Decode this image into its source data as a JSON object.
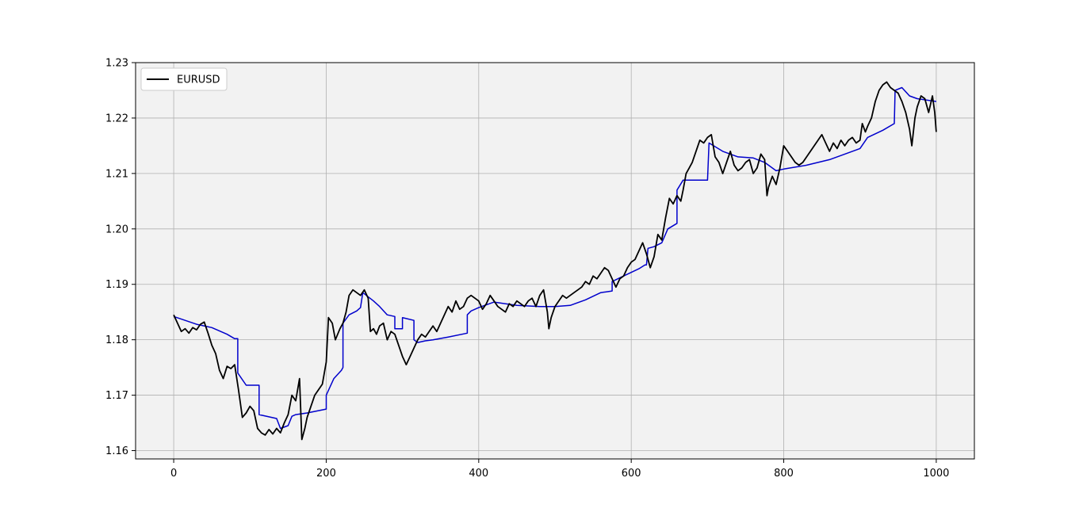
{
  "chart_data": {
    "type": "line",
    "title": "",
    "xlabel": "",
    "ylabel": "",
    "xlim": [
      -50,
      1050
    ],
    "ylim": [
      1.1585,
      1.23
    ],
    "x_ticks": [
      0,
      200,
      400,
      600,
      800,
      1000
    ],
    "x_tick_labels": [
      "0",
      "200",
      "400",
      "600",
      "800",
      "1000"
    ],
    "y_ticks": [
      1.16,
      1.17,
      1.18,
      1.19,
      1.2,
      1.21,
      1.22,
      1.23
    ],
    "y_tick_labels": [
      "1.16",
      "1.17",
      "1.18",
      "1.19",
      "1.20",
      "1.21",
      "1.22",
      "1.23"
    ],
    "grid": true,
    "background_color": "#f2f2f2",
    "legend": {
      "position": "top-left",
      "entries": [
        {
          "label": "EURUSD",
          "color": "#000000"
        }
      ]
    },
    "series": [
      {
        "name": "EURUSD",
        "color": "#000000",
        "points": [
          [
            0,
            1.1845
          ],
          [
            5,
            1.183
          ],
          [
            10,
            1.1815
          ],
          [
            15,
            1.182
          ],
          [
            20,
            1.1812
          ],
          [
            25,
            1.1822
          ],
          [
            30,
            1.1818
          ],
          [
            35,
            1.1828
          ],
          [
            40,
            1.1832
          ],
          [
            45,
            1.1812
          ],
          [
            50,
            1.179
          ],
          [
            55,
            1.1775
          ],
          [
            60,
            1.1745
          ],
          [
            65,
            1.173
          ],
          [
            70,
            1.1752
          ],
          [
            75,
            1.1748
          ],
          [
            80,
            1.1755
          ],
          [
            85,
            1.171
          ],
          [
            90,
            1.166
          ],
          [
            95,
            1.1668
          ],
          [
            100,
            1.168
          ],
          [
            105,
            1.1672
          ],
          [
            110,
            1.164
          ],
          [
            115,
            1.1632
          ],
          [
            120,
            1.1628
          ],
          [
            125,
            1.1638
          ],
          [
            130,
            1.163
          ],
          [
            135,
            1.164
          ],
          [
            140,
            1.1632
          ],
          [
            145,
            1.165
          ],
          [
            150,
            1.1665
          ],
          [
            155,
            1.17
          ],
          [
            160,
            1.169
          ],
          [
            165,
            1.173
          ],
          [
            168,
            1.162
          ],
          [
            172,
            1.164
          ],
          [
            175,
            1.166
          ],
          [
            180,
            1.168
          ],
          [
            185,
            1.17
          ],
          [
            190,
            1.171
          ],
          [
            195,
            1.172
          ],
          [
            200,
            1.176
          ],
          [
            203,
            1.184
          ],
          [
            208,
            1.183
          ],
          [
            212,
            1.18
          ],
          [
            218,
            1.182
          ],
          [
            222,
            1.183
          ],
          [
            226,
            1.185
          ],
          [
            230,
            1.188
          ],
          [
            235,
            1.189
          ],
          [
            240,
            1.1885
          ],
          [
            245,
            1.188
          ],
          [
            250,
            1.189
          ],
          [
            255,
            1.1875
          ],
          [
            258,
            1.1815
          ],
          [
            262,
            1.182
          ],
          [
            266,
            1.181
          ],
          [
            270,
            1.1825
          ],
          [
            275,
            1.183
          ],
          [
            280,
            1.18
          ],
          [
            285,
            1.1815
          ],
          [
            290,
            1.181
          ],
          [
            295,
            1.179
          ],
          [
            300,
            1.177
          ],
          [
            305,
            1.1755
          ],
          [
            310,
            1.177
          ],
          [
            315,
            1.1785
          ],
          [
            320,
            1.18
          ],
          [
            325,
            1.181
          ],
          [
            330,
            1.1805
          ],
          [
            335,
            1.1815
          ],
          [
            340,
            1.1825
          ],
          [
            345,
            1.1815
          ],
          [
            350,
            1.183
          ],
          [
            355,
            1.1845
          ],
          [
            360,
            1.186
          ],
          [
            365,
            1.185
          ],
          [
            370,
            1.187
          ],
          [
            375,
            1.1855
          ],
          [
            380,
            1.186
          ],
          [
            385,
            1.1875
          ],
          [
            390,
            1.188
          ],
          [
            395,
            1.1875
          ],
          [
            400,
            1.187
          ],
          [
            405,
            1.1855
          ],
          [
            410,
            1.1865
          ],
          [
            415,
            1.188
          ],
          [
            420,
            1.187
          ],
          [
            425,
            1.186
          ],
          [
            430,
            1.1855
          ],
          [
            435,
            1.185
          ],
          [
            440,
            1.1865
          ],
          [
            445,
            1.186
          ],
          [
            450,
            1.187
          ],
          [
            455,
            1.1865
          ],
          [
            460,
            1.186
          ],
          [
            465,
            1.187
          ],
          [
            470,
            1.1875
          ],
          [
            475,
            1.186
          ],
          [
            480,
            1.188
          ],
          [
            485,
            1.189
          ],
          [
            490,
            1.185
          ],
          [
            492,
            1.182
          ],
          [
            495,
            1.184
          ],
          [
            500,
            1.186
          ],
          [
            505,
            1.187
          ],
          [
            510,
            1.188
          ],
          [
            515,
            1.1875
          ],
          [
            520,
            1.188
          ],
          [
            525,
            1.1885
          ],
          [
            530,
            1.189
          ],
          [
            535,
            1.1895
          ],
          [
            540,
            1.1905
          ],
          [
            545,
            1.19
          ],
          [
            550,
            1.1915
          ],
          [
            555,
            1.191
          ],
          [
            560,
            1.192
          ],
          [
            565,
            1.193
          ],
          [
            570,
            1.1925
          ],
          [
            575,
            1.191
          ],
          [
            580,
            1.1895
          ],
          [
            585,
            1.191
          ],
          [
            590,
            1.1915
          ],
          [
            595,
            1.193
          ],
          [
            600,
            1.194
          ],
          [
            605,
            1.1945
          ],
          [
            610,
            1.196
          ],
          [
            615,
            1.1975
          ],
          [
            620,
            1.1955
          ],
          [
            625,
            1.193
          ],
          [
            630,
            1.195
          ],
          [
            635,
            1.199
          ],
          [
            640,
            1.198
          ],
          [
            645,
            1.202
          ],
          [
            650,
            1.2055
          ],
          [
            655,
            1.2045
          ],
          [
            660,
            1.206
          ],
          [
            665,
            1.205
          ],
          [
            668,
            1.207
          ],
          [
            672,
            1.21
          ],
          [
            676,
            1.211
          ],
          [
            680,
            1.212
          ],
          [
            685,
            1.214
          ],
          [
            690,
            1.216
          ],
          [
            695,
            1.2155
          ],
          [
            700,
            1.2165
          ],
          [
            705,
            1.217
          ],
          [
            710,
            1.213
          ],
          [
            715,
            1.212
          ],
          [
            720,
            1.21
          ],
          [
            725,
            1.212
          ],
          [
            730,
            1.214
          ],
          [
            735,
            1.2115
          ],
          [
            740,
            1.2105
          ],
          [
            745,
            1.211
          ],
          [
            750,
            1.212
          ],
          [
            755,
            1.2125
          ],
          [
            760,
            1.21
          ],
          [
            765,
            1.211
          ],
          [
            770,
            1.2135
          ],
          [
            775,
            1.2125
          ],
          [
            778,
            1.206
          ],
          [
            780,
            1.2075
          ],
          [
            785,
            1.2095
          ],
          [
            790,
            1.208
          ],
          [
            795,
            1.211
          ],
          [
            800,
            1.215
          ],
          [
            805,
            1.214
          ],
          [
            810,
            1.213
          ],
          [
            815,
            1.212
          ],
          [
            820,
            1.2115
          ],
          [
            825,
            1.212
          ],
          [
            830,
            1.213
          ],
          [
            835,
            1.214
          ],
          [
            840,
            1.215
          ],
          [
            845,
            1.216
          ],
          [
            850,
            1.217
          ],
          [
            855,
            1.2155
          ],
          [
            860,
            1.214
          ],
          [
            865,
            1.2155
          ],
          [
            870,
            1.2145
          ],
          [
            875,
            1.216
          ],
          [
            880,
            1.215
          ],
          [
            885,
            1.216
          ],
          [
            890,
            1.2165
          ],
          [
            895,
            1.2155
          ],
          [
            900,
            1.216
          ],
          [
            903,
            1.219
          ],
          [
            907,
            1.2175
          ],
          [
            910,
            1.2185
          ],
          [
            915,
            1.22
          ],
          [
            920,
            1.223
          ],
          [
            925,
            1.225
          ],
          [
            930,
            1.226
          ],
          [
            935,
            1.2265
          ],
          [
            940,
            1.2255
          ],
          [
            945,
            1.225
          ],
          [
            950,
            1.2245
          ],
          [
            955,
            1.223
          ],
          [
            960,
            1.221
          ],
          [
            965,
            1.218
          ],
          [
            968,
            1.215
          ],
          [
            972,
            1.22
          ],
          [
            975,
            1.222
          ],
          [
            980,
            1.224
          ],
          [
            985,
            1.2235
          ],
          [
            990,
            1.221
          ],
          [
            995,
            1.224
          ],
          [
            998,
            1.221
          ],
          [
            1000,
            1.2175
          ]
        ]
      },
      {
        "name": "",
        "color": "#0000cc",
        "points": [
          [
            0,
            1.1842
          ],
          [
            30,
            1.1828
          ],
          [
            50,
            1.1822
          ],
          [
            70,
            1.181
          ],
          [
            80,
            1.1802
          ],
          [
            84,
            1.1802
          ],
          [
            84,
            1.174
          ],
          [
            95,
            1.1718
          ],
          [
            112,
            1.1718
          ],
          [
            112,
            1.1665
          ],
          [
            135,
            1.1658
          ],
          [
            140,
            1.164
          ],
          [
            150,
            1.1645
          ],
          [
            155,
            1.1662
          ],
          [
            160,
            1.1665
          ],
          [
            175,
            1.1668
          ],
          [
            200,
            1.1675
          ],
          [
            200,
            1.17
          ],
          [
            210,
            1.173
          ],
          [
            220,
            1.1745
          ],
          [
            222,
            1.175
          ],
          [
            222,
            1.183
          ],
          [
            230,
            1.1845
          ],
          [
            240,
            1.1852
          ],
          [
            245,
            1.1858
          ],
          [
            248,
            1.1885
          ],
          [
            262,
            1.187
          ],
          [
            270,
            1.186
          ],
          [
            280,
            1.1845
          ],
          [
            290,
            1.1842
          ],
          [
            290,
            1.182
          ],
          [
            300,
            1.182
          ],
          [
            300,
            1.184
          ],
          [
            315,
            1.1835
          ],
          [
            315,
            1.18
          ],
          [
            320,
            1.1795
          ],
          [
            330,
            1.1798
          ],
          [
            340,
            1.18
          ],
          [
            360,
            1.1805
          ],
          [
            385,
            1.1812
          ],
          [
            385,
            1.1845
          ],
          [
            390,
            1.1852
          ],
          [
            400,
            1.1858
          ],
          [
            420,
            1.1868
          ],
          [
            450,
            1.1862
          ],
          [
            480,
            1.186
          ],
          [
            500,
            1.186
          ],
          [
            520,
            1.1862
          ],
          [
            540,
            1.1872
          ],
          [
            560,
            1.1885
          ],
          [
            575,
            1.1888
          ],
          [
            575,
            1.1905
          ],
          [
            590,
            1.1915
          ],
          [
            610,
            1.1928
          ],
          [
            618,
            1.1935
          ],
          [
            620,
            1.1935
          ],
          [
            622,
            1.1965
          ],
          [
            630,
            1.1968
          ],
          [
            640,
            1.1975
          ],
          [
            648,
            1.2
          ],
          [
            660,
            1.201
          ],
          [
            660,
            1.207
          ],
          [
            668,
            1.2088
          ],
          [
            700,
            1.2088
          ],
          [
            702,
            1.2155
          ],
          [
            720,
            1.214
          ],
          [
            740,
            1.213
          ],
          [
            760,
            1.2128
          ],
          [
            775,
            1.212
          ],
          [
            780,
            1.2115
          ],
          [
            790,
            1.2105
          ],
          [
            800,
            1.2108
          ],
          [
            830,
            1.2115
          ],
          [
            860,
            1.2125
          ],
          [
            880,
            1.2135
          ],
          [
            900,
            1.2145
          ],
          [
            910,
            1.2165
          ],
          [
            930,
            1.2178
          ],
          [
            945,
            1.219
          ],
          [
            946,
            1.225
          ],
          [
            955,
            1.2255
          ],
          [
            965,
            1.224
          ],
          [
            975,
            1.2235
          ],
          [
            990,
            1.2232
          ],
          [
            1000,
            1.223
          ]
        ]
      }
    ]
  }
}
